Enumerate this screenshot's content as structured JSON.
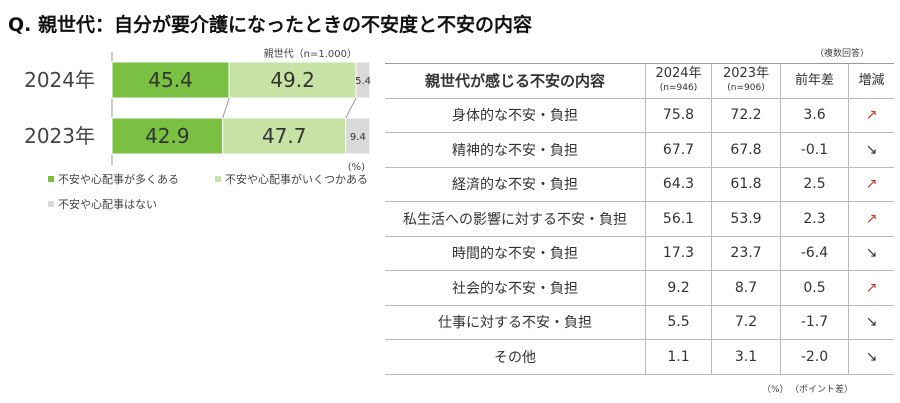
{
  "title": "Q. 親世代：自分が要介護になったときの不安度と不安の内容",
  "chart_data": {
    "type": "bar",
    "orientation": "horizontal",
    "stacked": true,
    "note": "親世代（n=1.000）",
    "unit": "(%)",
    "categories": [
      "2024年",
      "2023年"
    ],
    "series": [
      {
        "name": "不安や心配事が多くある",
        "values": [
          45.4,
          42.9
        ],
        "color": "#7ac143"
      },
      {
        "name": "不安や心配事がいくつかある",
        "values": [
          49.2,
          47.7
        ],
        "color": "#c6e2a4"
      },
      {
        "name": "不安や心配事はない",
        "values": [
          5.4,
          9.4
        ],
        "color": "#d9d9d9"
      }
    ],
    "xlim": [
      0,
      100
    ],
    "legend": "bottom"
  },
  "table": {
    "note": "（複数回答）",
    "headers": [
      "親世代が感じる不安の内容",
      "2024年",
      "2023年",
      "前年差",
      "増減"
    ],
    "subheaders": [
      "",
      "(n=946)",
      "(n=906)",
      "",
      ""
    ],
    "rows": [
      [
        "身体的な不安・負担",
        "75.8",
        "72.2",
        "3.6",
        "↗"
      ],
      [
        "精神的な不安・負担",
        "67.7",
        "67.8",
        "-0.1",
        "↘"
      ],
      [
        "経済的な不安・負担",
        "64.3",
        "61.8",
        "2.5",
        "↗"
      ],
      [
        "私生活への影響に対する不安・負担",
        "56.1",
        "53.9",
        "2.3",
        "↗"
      ],
      [
        "時間的な不安・負担",
        "17.3",
        "23.7",
        "-6.4",
        "↘"
      ],
      [
        "社会的な不安・負担",
        "9.2",
        "8.7",
        "0.5",
        "↗"
      ],
      [
        "仕事に対する不安・負担",
        "5.5",
        "7.2",
        "-1.7",
        "↘"
      ],
      [
        "その他",
        "1.1",
        "3.1",
        "-2.0",
        "↘"
      ]
    ],
    "footer_unit": "（%）",
    "footer_diff": "（ポイント差）"
  }
}
